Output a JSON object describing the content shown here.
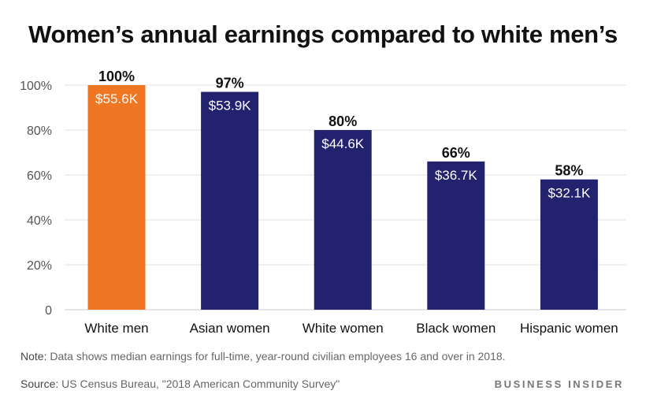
{
  "colors": {
    "highlight": "#ef7622",
    "bar": "#23226e",
    "grid": "#e2e2e2",
    "axis": "#c8c8c8"
  },
  "chart_data": {
    "type": "bar",
    "title": "Women’s annual earnings compared to white men’s",
    "xlabel": "",
    "ylabel": "",
    "ylim": [
      0,
      100
    ],
    "yticks": [
      0,
      20,
      40,
      60,
      80,
      100
    ],
    "ytick_labels": [
      "0",
      "20%",
      "40%",
      "60%",
      "80%",
      "100%"
    ],
    "categories": [
      "White men",
      "Asian women",
      "White women",
      "Black women",
      "Hispanic women"
    ],
    "values": [
      100,
      97,
      80,
      66,
      58
    ],
    "percent_labels": [
      "100%",
      "97%",
      "80%",
      "66%",
      "58%"
    ],
    "earnings_labels": [
      "$55.6K",
      "$53.9K",
      "$44.6K",
      "$36.7K",
      "$32.1K"
    ],
    "highlight_index": 0
  },
  "footer": {
    "note_label": "Note:",
    "note_text": " Data shows median earnings for full-time, year-round civilian employees 16 and over in 2018.",
    "source_label": "Source:",
    "source_text": " US Census Bureau, \"2018 American Community Survey\"",
    "brand": "BUSINESS INSIDER"
  }
}
